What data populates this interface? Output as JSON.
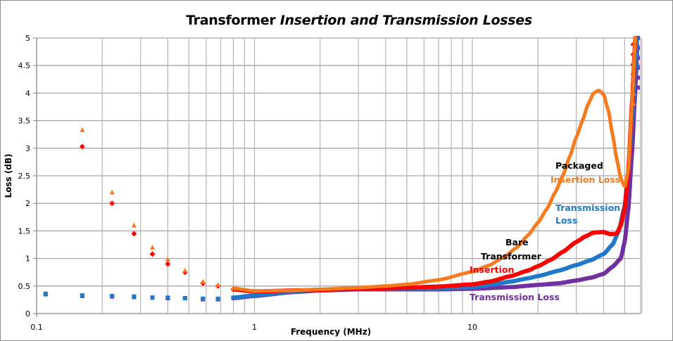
{
  "chart_data": {
    "type": "scatter",
    "title": "Transformer",
    "title_italic": "Insertion and Transmission Losses",
    "xlabel": "Frequency (MHz)",
    "ylabel": "Loss (dB)",
    "xscale": "log",
    "xlim": [
      0.1,
      60
    ],
    "ylim": [
      0,
      5
    ],
    "grid": true,
    "x_tick_labels": [
      "0.1",
      "1",
      "10"
    ],
    "x_ticks": [
      0.1,
      1,
      10
    ],
    "y_tick_labels": [
      "0",
      "0.5",
      "1",
      "1.5",
      "2",
      "2.5",
      "3",
      "3.5",
      "4",
      "4.5",
      "5"
    ],
    "y_ticks": [
      0,
      0.5,
      1,
      1.5,
      2,
      2.5,
      3,
      3.5,
      4,
      4.5,
      5
    ],
    "series": [
      {
        "name": "Packaged Insertion Loss",
        "color": "#f47b20",
        "marker": "triangle",
        "x": [
          0.162,
          0.222,
          0.28,
          0.34,
          0.4,
          0.48,
          0.58,
          0.68,
          0.8,
          1,
          1.5,
          2,
          3,
          4,
          5,
          7,
          10,
          12,
          14,
          16,
          18,
          20,
          22,
          24,
          26,
          28,
          30,
          32,
          34,
          36,
          38,
          40,
          42,
          44,
          46,
          48,
          50,
          52,
          54,
          56
        ],
        "y": [
          3.33,
          2.2,
          1.6,
          1.2,
          0.98,
          0.78,
          0.58,
          0.52,
          0.46,
          0.41,
          0.42,
          0.44,
          0.47,
          0.5,
          0.53,
          0.61,
          0.76,
          0.88,
          1.03,
          1.2,
          1.42,
          1.65,
          1.9,
          2.2,
          2.5,
          2.85,
          3.2,
          3.5,
          3.8,
          4.0,
          4.05,
          3.98,
          3.7,
          3.25,
          2.8,
          2.45,
          2.3,
          2.6,
          3.8,
          5.0
        ]
      },
      {
        "name": "Bare Transformer Insertion",
        "color": "#ff0000",
        "marker": "diamond",
        "x": [
          0.162,
          0.222,
          0.28,
          0.34,
          0.4,
          0.48,
          0.58,
          0.68,
          0.8,
          1,
          1.5,
          2,
          3,
          5,
          7,
          10,
          12,
          15,
          18,
          20,
          23,
          26,
          30,
          33,
          36,
          40,
          43,
          46,
          48,
          50,
          52,
          54,
          56
        ],
        "y": [
          3.03,
          2.0,
          1.45,
          1.08,
          0.9,
          0.75,
          0.55,
          0.5,
          0.44,
          0.4,
          0.42,
          0.43,
          0.45,
          0.47,
          0.49,
          0.53,
          0.58,
          0.68,
          0.78,
          0.86,
          0.98,
          1.12,
          1.3,
          1.4,
          1.47,
          1.48,
          1.44,
          1.45,
          1.6,
          1.9,
          2.6,
          3.8,
          5.0
        ]
      },
      {
        "name": "Packaged Transmission Loss",
        "color": "#1f78c8",
        "marker": "square",
        "x": [
          0.11,
          0.162,
          0.222,
          0.28,
          0.34,
          0.4,
          0.48,
          0.58,
          0.68,
          0.8,
          1,
          1.5,
          2,
          3,
          5,
          7,
          10,
          12,
          15,
          18,
          20,
          25,
          30,
          35,
          40,
          44,
          47,
          50,
          52,
          54,
          56,
          57
        ],
        "y": [
          0.36,
          0.33,
          0.32,
          0.31,
          0.29,
          0.29,
          0.28,
          0.27,
          0.27,
          0.29,
          0.33,
          0.4,
          0.43,
          0.45,
          0.46,
          0.46,
          0.48,
          0.52,
          0.58,
          0.64,
          0.68,
          0.78,
          0.88,
          0.97,
          1.08,
          1.25,
          1.5,
          1.95,
          2.6,
          3.5,
          4.5,
          5.0
        ]
      },
      {
        "name": "Bare Transformer Transmission Loss",
        "color": "#7030a0",
        "marker": "square",
        "x": [
          0.11,
          0.162,
          0.222,
          0.28,
          0.34,
          0.4,
          0.48,
          0.58,
          0.68,
          0.8,
          1,
          1.5,
          2,
          3,
          5,
          7,
          10,
          15,
          20,
          25,
          30,
          35,
          40,
          44,
          48,
          50,
          52,
          54,
          56,
          57
        ],
        "y": [
          0.35,
          0.32,
          0.31,
          0.3,
          0.29,
          0.28,
          0.28,
          0.26,
          0.26,
          0.28,
          0.32,
          0.39,
          0.42,
          0.44,
          0.44,
          0.44,
          0.45,
          0.48,
          0.52,
          0.55,
          0.6,
          0.65,
          0.72,
          0.85,
          1.0,
          1.3,
          1.9,
          2.9,
          4.1,
          4.8
        ]
      }
    ],
    "annotations": [
      {
        "text": "Packaged",
        "color": "#000000"
      },
      {
        "text": "Insertion Loss",
        "color": "#f47b20"
      },
      {
        "text": "Transmission",
        "color": "#1f78c8"
      },
      {
        "text": "Loss",
        "color": "#1f78c8"
      },
      {
        "text": "Bare",
        "color": "#000000"
      },
      {
        "text": "Transformer",
        "color": "#000000"
      },
      {
        "text": "Insertion",
        "color": "#ff0000"
      },
      {
        "text": "Transmission Loss",
        "color": "#7030a0"
      }
    ],
    "discrete_below_mhz": 1.1
  }
}
